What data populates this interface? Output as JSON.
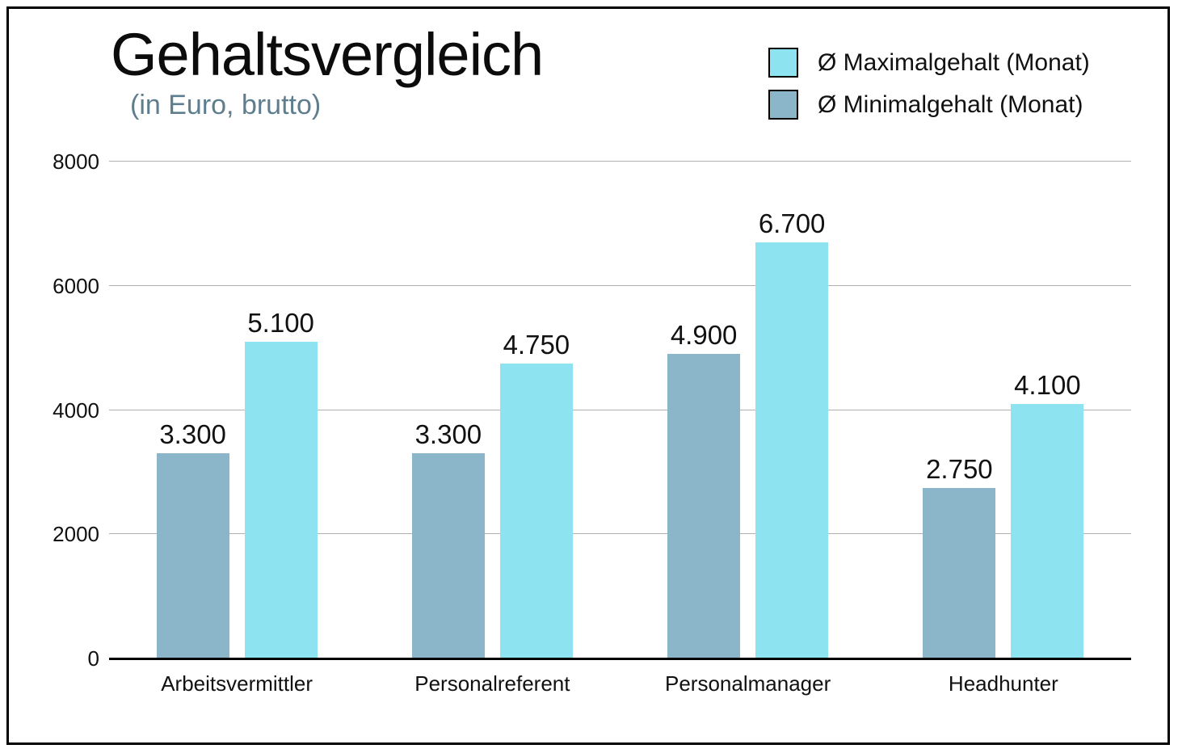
{
  "chart_data": {
    "type": "bar",
    "title": "Gehaltsvergleich",
    "subtitle": "(in Euro, brutto)",
    "categories": [
      "Arbeitsvermittler",
      "Personalreferent",
      "Personalmanager",
      "Headhunter"
    ],
    "series": [
      {
        "key": "max",
        "name": "Ø Maximalgehalt (Monat)",
        "color": "#8DE3F0",
        "values": [
          5100,
          4750,
          6700,
          4100
        ]
      },
      {
        "key": "min",
        "name": "Ø Minimalgehalt (Monat)",
        "color": "#8BB5C9",
        "values": [
          3300,
          3300,
          4900,
          2750
        ]
      }
    ],
    "bar_order_in_group": [
      "min",
      "max"
    ],
    "value_labels_formatted": {
      "max": [
        "5.100",
        "4.750",
        "6.700",
        "4.100"
      ],
      "min": [
        "3.300",
        "3.300",
        "4.900",
        "2.750"
      ]
    },
    "number_format": "thousands-dot",
    "ylim": [
      0,
      8000
    ],
    "yticks": [
      0,
      2000,
      4000,
      6000,
      8000
    ],
    "grid": true,
    "legend_position": "top-right",
    "colors": {
      "title": "#0c0c0c",
      "subtitle": "#5E7E8E",
      "gridline": "#b0b0b0",
      "axis_line": "#000000",
      "value_label": "#111111",
      "frame_border": "#000000",
      "background": "#FFFFFF"
    }
  }
}
